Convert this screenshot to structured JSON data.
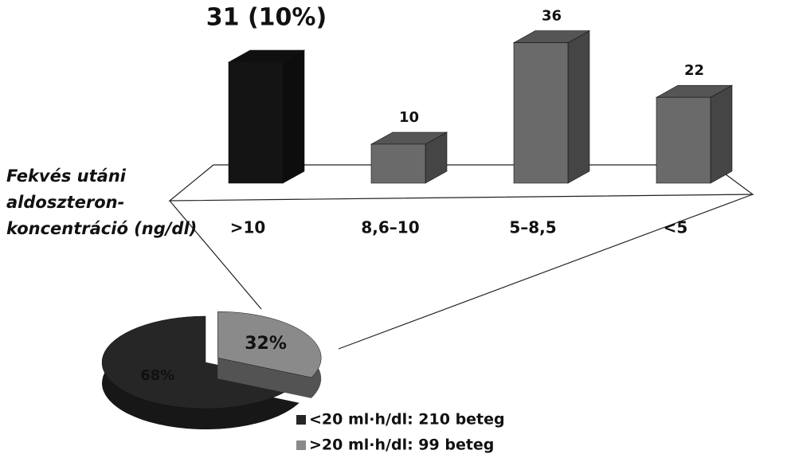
{
  "chart_data": [
    {
      "type": "bar",
      "xlabel": [
        "Fekvés utáni",
        "aldoszteron-",
        "koncentráció (ng/dl)"
      ],
      "categories": [
        ">10",
        "8,6–10",
        "5–8,5",
        "<5"
      ],
      "values": [
        31,
        10,
        36,
        22
      ],
      "value_labels": [
        "31 (10%)",
        "10",
        "36",
        "22"
      ],
      "colors": [
        "#141414",
        "#6a6a6a",
        "#6a6a6a",
        "#6a6a6a"
      ]
    },
    {
      "type": "pie",
      "categories": [
        "<20 ml·h/dl: 210 beteg",
        ">20 ml·h/dl: 99 beteg"
      ],
      "values": [
        68,
        32
      ],
      "value_labels": [
        "68%",
        "32%"
      ],
      "colors": [
        "#262626",
        "#8a8a8a"
      ]
    }
  ]
}
